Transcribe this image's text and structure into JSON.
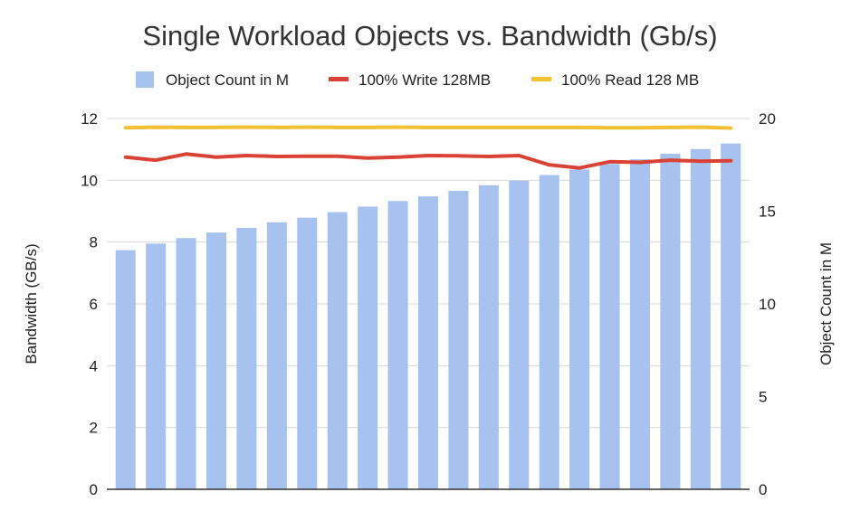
{
  "chart_data": {
    "type": "bar",
    "title": "Single Workload Objects vs. Bandwidth (Gb/s)",
    "ylabel_left": "Bandwidth (GB/s)",
    "ylabel_right": "Object Count in M",
    "xlabel": "",
    "grid": true,
    "legend_position": "top",
    "left_axis": {
      "min": 0,
      "max": 12,
      "ticks": [
        "0",
        "2",
        "4",
        "6",
        "8",
        "10",
        "12"
      ]
    },
    "right_axis": {
      "min": 0,
      "max": 20,
      "ticks": [
        "0",
        "5",
        "10",
        "15",
        "20"
      ]
    },
    "series": [
      {
        "name": "Object Count in M",
        "type": "bar",
        "axis": "right",
        "color": "#a8c2ef",
        "values": [
          12.9,
          13.25,
          13.55,
          13.85,
          14.1,
          14.4,
          14.65,
          14.95,
          15.25,
          15.55,
          15.8,
          16.1,
          16.4,
          16.65,
          16.95,
          17.25,
          17.55,
          17.8,
          18.1,
          18.35,
          18.65
        ]
      },
      {
        "name": "100% Write 128MB",
        "type": "line",
        "axis": "left",
        "color": "#d94235",
        "values": [
          10.75,
          10.65,
          10.85,
          10.75,
          10.8,
          10.77,
          10.78,
          10.78,
          10.72,
          10.75,
          10.8,
          10.79,
          10.77,
          10.8,
          10.5,
          10.4,
          10.6,
          10.58,
          10.65,
          10.62,
          10.63
        ]
      },
      {
        "name": "100% Read 128 MB",
        "type": "line",
        "axis": "left",
        "color": "#f4c133",
        "values": [
          11.7,
          11.72,
          11.71,
          11.71,
          11.72,
          11.71,
          11.72,
          11.71,
          11.71,
          11.72,
          11.71,
          11.71,
          11.71,
          11.71,
          11.71,
          11.71,
          11.7,
          11.7,
          11.71,
          11.72,
          11.69
        ]
      }
    ]
  }
}
